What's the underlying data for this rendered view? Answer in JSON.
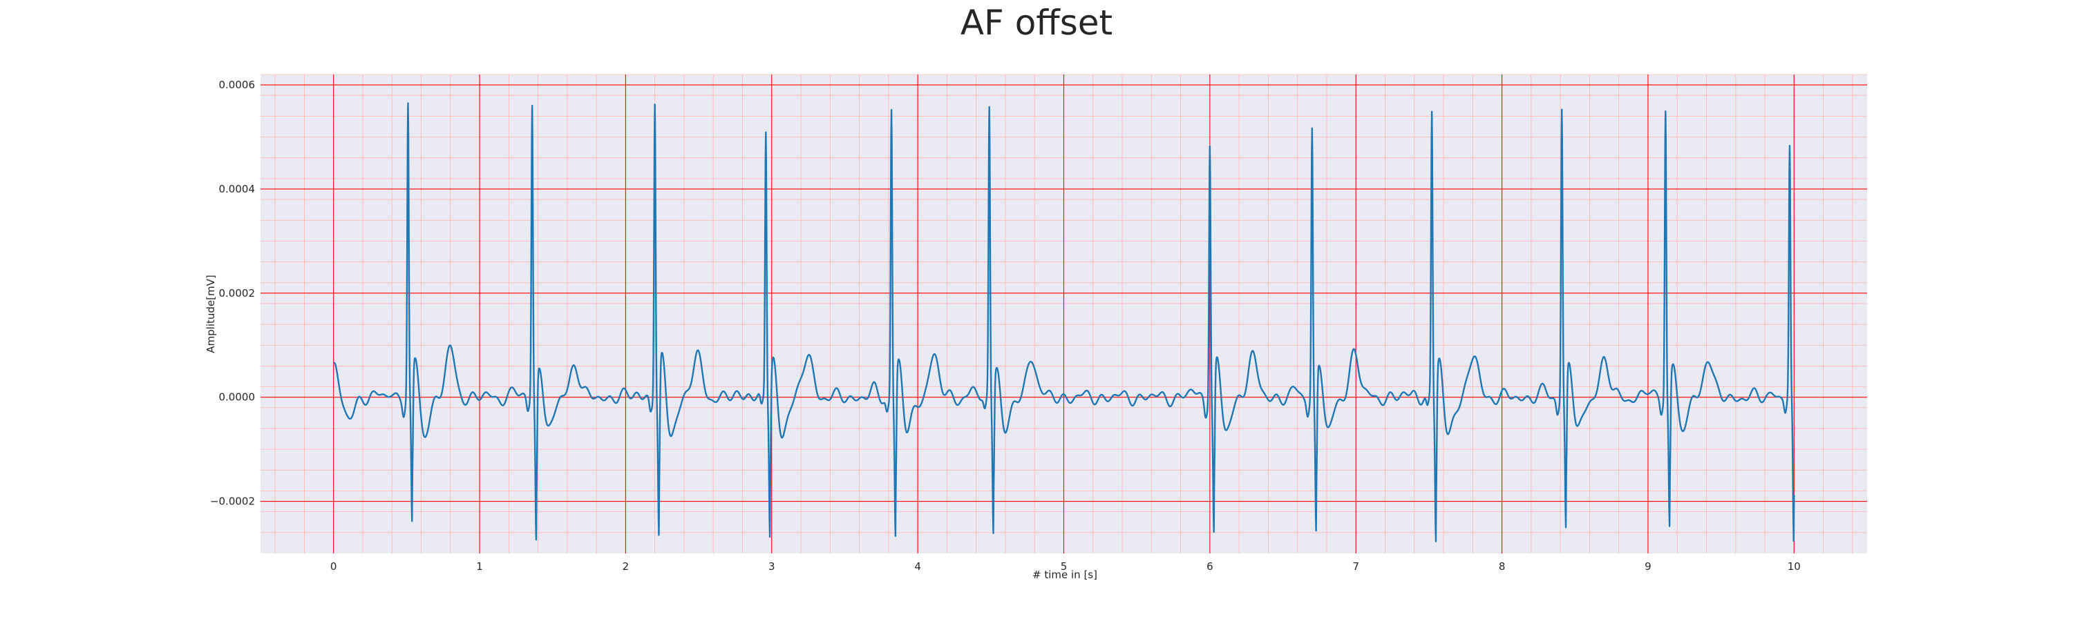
{
  "chart_data": {
    "type": "line",
    "title": "AF offset",
    "xlabel": "# time in [s]",
    "ylabel": "Amplitude[mV]",
    "xlim": [
      -0.5,
      10.5
    ],
    "ylim": [
      -0.0003,
      0.00062
    ],
    "x_ticks": [
      0,
      1,
      2,
      3,
      4,
      5,
      6,
      7,
      8,
      9,
      10
    ],
    "x_tick_labels": [
      "0",
      "1",
      "2",
      "3",
      "4",
      "5",
      "6",
      "7",
      "8",
      "9",
      "10"
    ],
    "y_ticks": [
      -0.0002,
      0.0,
      0.0002,
      0.0004,
      0.0006
    ],
    "y_tick_labels": [
      "−0.0002",
      "0.0000",
      "0.0002",
      "0.0004",
      "0.0006"
    ],
    "grid": true,
    "minor_grid": true,
    "series": [
      {
        "color": "#1f77b4",
        "beats": [
          {
            "r_time": 0.51,
            "r_peak": 0.00057,
            "s_depth": -0.00022,
            "t_amp": 9e-05
          },
          {
            "r_time": 1.36,
            "r_peak": 0.00057,
            "s_depth": -0.00024,
            "t_amp": 6.5e-05
          },
          {
            "r_time": 2.2,
            "r_peak": 0.00058,
            "s_depth": -0.000245,
            "t_amp": 7.8e-05
          },
          {
            "r_time": 2.96,
            "r_peak": 0.00052,
            "s_depth": -0.000235,
            "t_amp": 8.5e-05
          },
          {
            "r_time": 3.82,
            "r_peak": 0.000565,
            "s_depth": -0.000235,
            "t_amp": 8e-05
          },
          {
            "r_time": 4.49,
            "r_peak": 0.00056,
            "s_depth": -0.00022,
            "t_amp": 8e-05
          },
          {
            "r_time": 6.0,
            "r_peak": 0.000505,
            "s_depth": -0.000235,
            "t_amp": 8e-05
          },
          {
            "r_time": 6.7,
            "r_peak": 0.000525,
            "s_depth": -0.00023,
            "t_amp": 8.8e-05
          },
          {
            "r_time": 7.52,
            "r_peak": 0.000555,
            "s_depth": -0.000245,
            "t_amp": 8e-05
          },
          {
            "r_time": 8.41,
            "r_peak": 0.000565,
            "s_depth": -0.000225,
            "t_amp": 7e-05
          },
          {
            "r_time": 9.12,
            "r_peak": 0.000565,
            "s_depth": -0.00021,
            "t_amp": 7.5e-05
          },
          {
            "r_time": 9.97,
            "r_peak": 0.00048,
            "s_depth": -0.00026,
            "t_amp": 0.0
          }
        ],
        "x_start": 0.0,
        "x_end": 10.0,
        "y_start": 6e-05
      }
    ]
  },
  "style": {
    "background": "#ffffff",
    "plot_background": "#eaeaf2",
    "major_grid_color": "#ff0000",
    "minor_grid_color": "#ffb3b3",
    "line_color": "#1f77b4",
    "text_color": "#262626"
  }
}
